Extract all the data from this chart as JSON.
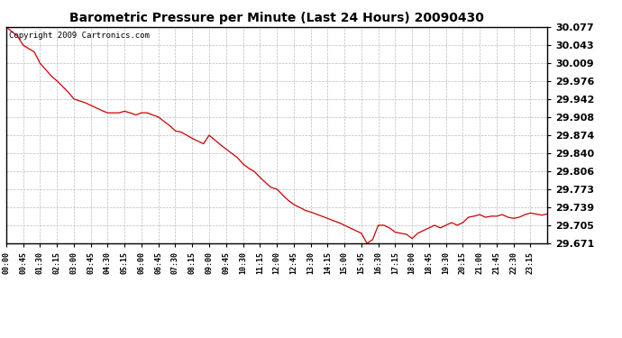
{
  "title": "Barometric Pressure per Minute (Last 24 Hours) 20090430",
  "copyright": "Copyright 2009 Cartronics.com",
  "line_color": "#cc0000",
  "bg_color": "#ffffff",
  "plot_bg_color": "#ffffff",
  "grid_color": "#bbbbbb",
  "ylim": [
    29.671,
    30.077
  ],
  "yticks": [
    29.671,
    29.705,
    29.739,
    29.773,
    29.806,
    29.84,
    29.874,
    29.908,
    29.942,
    29.976,
    30.009,
    30.043,
    30.077
  ],
  "xtick_labels": [
    "00:00",
    "00:45",
    "01:30",
    "02:15",
    "03:00",
    "03:45",
    "04:30",
    "05:15",
    "06:00",
    "06:45",
    "07:30",
    "08:15",
    "09:00",
    "09:45",
    "10:30",
    "11:15",
    "12:00",
    "12:45",
    "13:30",
    "14:15",
    "15:00",
    "15:45",
    "16:30",
    "17:15",
    "18:00",
    "18:45",
    "19:30",
    "20:15",
    "21:00",
    "21:45",
    "22:30",
    "23:15"
  ],
  "key_points": [
    [
      0,
      30.077
    ],
    [
      30,
      30.06
    ],
    [
      45,
      30.043
    ],
    [
      75,
      30.03
    ],
    [
      90,
      30.009
    ],
    [
      120,
      29.985
    ],
    [
      135,
      29.976
    ],
    [
      165,
      29.955
    ],
    [
      180,
      29.942
    ],
    [
      210,
      29.935
    ],
    [
      225,
      29.93
    ],
    [
      255,
      29.92
    ],
    [
      270,
      29.916
    ],
    [
      300,
      29.916
    ],
    [
      315,
      29.919
    ],
    [
      330,
      29.916
    ],
    [
      345,
      29.912
    ],
    [
      360,
      29.916
    ],
    [
      375,
      29.916
    ],
    [
      390,
      29.912
    ],
    [
      405,
      29.908
    ],
    [
      420,
      29.9
    ],
    [
      435,
      29.892
    ],
    [
      450,
      29.882
    ],
    [
      465,
      29.88
    ],
    [
      480,
      29.874
    ],
    [
      495,
      29.868
    ],
    [
      510,
      29.863
    ],
    [
      525,
      29.858
    ],
    [
      540,
      29.874
    ],
    [
      555,
      29.865
    ],
    [
      570,
      29.856
    ],
    [
      585,
      29.848
    ],
    [
      600,
      29.84
    ],
    [
      615,
      29.832
    ],
    [
      630,
      29.82
    ],
    [
      645,
      29.812
    ],
    [
      660,
      29.806
    ],
    [
      675,
      29.795
    ],
    [
      690,
      29.785
    ],
    [
      705,
      29.776
    ],
    [
      720,
      29.773
    ],
    [
      735,
      29.762
    ],
    [
      750,
      29.752
    ],
    [
      765,
      29.744
    ],
    [
      780,
      29.739
    ],
    [
      795,
      29.733
    ],
    [
      810,
      29.73
    ],
    [
      825,
      29.726
    ],
    [
      840,
      29.722
    ],
    [
      855,
      29.718
    ],
    [
      870,
      29.714
    ],
    [
      885,
      29.71
    ],
    [
      900,
      29.705
    ],
    [
      915,
      29.7
    ],
    [
      930,
      29.695
    ],
    [
      945,
      29.69
    ],
    [
      960,
      29.671
    ],
    [
      975,
      29.678
    ],
    [
      990,
      29.705
    ],
    [
      1005,
      29.705
    ],
    [
      1020,
      29.7
    ],
    [
      1035,
      29.692
    ],
    [
      1050,
      29.69
    ],
    [
      1065,
      29.688
    ],
    [
      1080,
      29.68
    ],
    [
      1095,
      29.69
    ],
    [
      1110,
      29.695
    ],
    [
      1125,
      29.7
    ],
    [
      1140,
      29.705
    ],
    [
      1155,
      29.7
    ],
    [
      1170,
      29.705
    ],
    [
      1185,
      29.71
    ],
    [
      1200,
      29.705
    ],
    [
      1215,
      29.71
    ],
    [
      1230,
      29.72
    ],
    [
      1245,
      29.722
    ],
    [
      1260,
      29.725
    ],
    [
      1275,
      29.72
    ],
    [
      1290,
      29.722
    ],
    [
      1305,
      29.722
    ],
    [
      1320,
      29.725
    ],
    [
      1335,
      29.72
    ],
    [
      1350,
      29.718
    ],
    [
      1365,
      29.72
    ],
    [
      1380,
      29.725
    ],
    [
      1395,
      29.728
    ],
    [
      1410,
      29.726
    ],
    [
      1425,
      29.724
    ],
    [
      1440,
      29.726
    ]
  ]
}
